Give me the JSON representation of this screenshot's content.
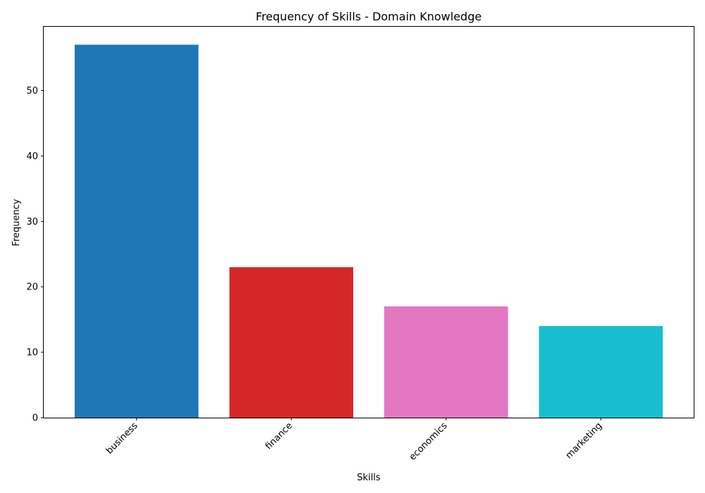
{
  "chart_data": {
    "type": "bar",
    "title": "Frequency of Skills - Domain Knowledge",
    "xlabel": "Skills",
    "ylabel": "Frequency",
    "categories": [
      "business",
      "finance",
      "economics",
      "marketing"
    ],
    "values": [
      57,
      23,
      17,
      14
    ],
    "colors": [
      "#1f77b4",
      "#d62728",
      "#e377c2",
      "#17becf"
    ],
    "ylim": [
      0,
      59.85
    ],
    "yticks": [
      0,
      10,
      20,
      30,
      40,
      50
    ],
    "grid": false,
    "legend": "none"
  }
}
